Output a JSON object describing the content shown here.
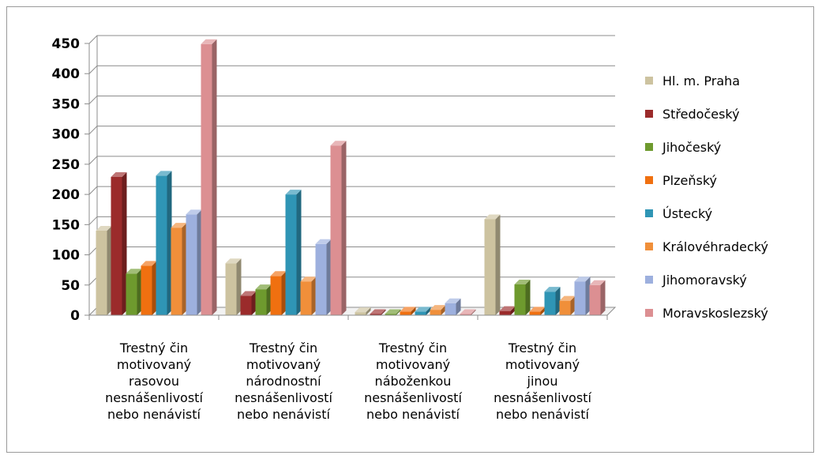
{
  "chart_data": {
    "type": "bar",
    "title": "",
    "xlabel": "",
    "ylabel": "",
    "ylim": [
      0,
      450
    ],
    "yticks": [
      0,
      50,
      100,
      150,
      200,
      250,
      300,
      350,
      400,
      450
    ],
    "grid": true,
    "legend_position": "right",
    "categories": [
      [
        "Trestný čin",
        "motivovaný",
        "rasovou",
        "nesnášenlivostí",
        "nebo nenávistí"
      ],
      [
        "Trestný čin",
        "motivovaný",
        "národnostní",
        "nesnášenlivostí",
        "nebo nenávistí"
      ],
      [
        "Trestný čin",
        "motivovaný",
        "náboženkou",
        "nesnášenlivostí",
        "nebo nenávistí"
      ],
      [
        "Trestný čin",
        "motivovaný",
        "jinou",
        "nesnášenlivostí",
        "nebo nenávistí"
      ]
    ],
    "series": [
      {
        "name": "Hl. m. Praha",
        "color": "#cdc3a0",
        "values": [
          140,
          86,
          5,
          159
        ]
      },
      {
        "name": "Středočeský",
        "color": "#9b2b2b",
        "values": [
          229,
          32,
          2,
          7
        ]
      },
      {
        "name": "Jihočeský",
        "color": "#6e9a2e",
        "values": [
          69,
          43,
          2,
          51
        ]
      },
      {
        "name": "Plzeňský",
        "color": "#f07010",
        "values": [
          82,
          65,
          6,
          6
        ]
      },
      {
        "name": "Ústecký",
        "color": "#2f95b5",
        "values": [
          231,
          200,
          6,
          39
        ]
      },
      {
        "name": "Královéhradecký",
        "color": "#f08f3a",
        "values": [
          145,
          56,
          9,
          24
        ]
      },
      {
        "name": "Jihomoravský",
        "color": "#9db0de",
        "values": [
          167,
          118,
          20,
          56
        ]
      },
      {
        "name": "Moravskoslezský",
        "color": "#dc8f92",
        "values": [
          449,
          281,
          2,
          50
        ]
      }
    ]
  }
}
